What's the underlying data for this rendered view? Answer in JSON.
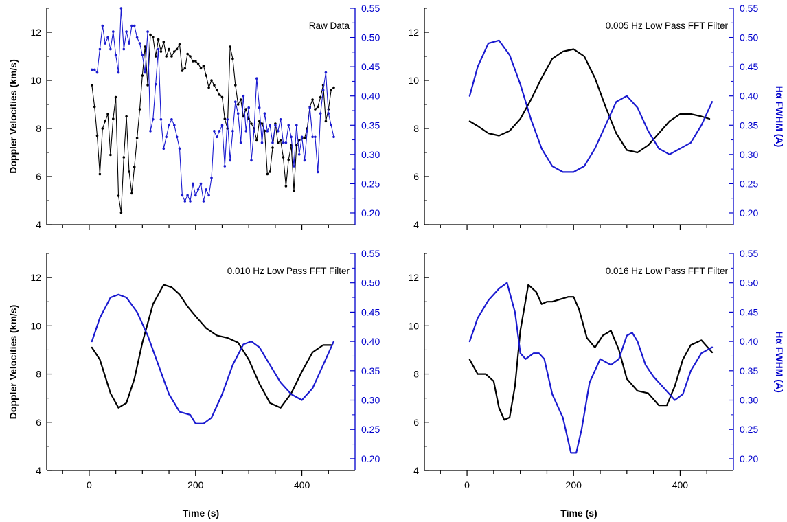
{
  "colors": {
    "velocity": "#000000",
    "fwhm": "#1a1ad0",
    "axis_right": "#0000cc"
  },
  "chart_data": [
    {
      "type": "line",
      "title": "Raw Data",
      "xlabel": "",
      "ylabel": "Doppler Velocities (km/s)",
      "ylabel_right": "",
      "xlim": [
        -80,
        500
      ],
      "ylim": [
        4,
        13
      ],
      "ylim_right": [
        0.18,
        0.55
      ],
      "xticks": [
        "0",
        "200",
        "400"
      ],
      "yticks": [
        "4",
        "6",
        "8",
        "10",
        "12"
      ],
      "yticks_right": [
        "0.20",
        "0.25",
        "0.30",
        "0.35",
        "0.40",
        "0.45",
        "0.50",
        "0.55"
      ],
      "markers": true,
      "series": [
        {
          "axis": "left",
          "x": [
            5,
            10,
            15,
            20,
            25,
            30,
            35,
            40,
            45,
            50,
            55,
            60,
            65,
            70,
            75,
            80,
            85,
            90,
            95,
            100,
            105,
            110,
            115,
            120,
            125,
            130,
            135,
            140,
            145,
            150,
            155,
            160,
            165,
            170,
            175,
            180,
            185,
            190,
            195,
            200,
            205,
            210,
            215,
            220,
            225,
            230,
            235,
            240,
            245,
            250,
            255,
            260,
            265,
            270,
            275,
            280,
            285,
            290,
            295,
            300,
            305,
            310,
            315,
            320,
            325,
            330,
            335,
            340,
            345,
            350,
            355,
            360,
            365,
            370,
            375,
            380,
            385,
            390,
            395,
            400,
            405,
            410,
            415,
            420,
            425,
            430,
            435,
            440,
            445,
            450,
            455,
            460
          ],
          "y": [
            9.8,
            8.9,
            7.7,
            6.1,
            8.0,
            8.3,
            8.6,
            6.9,
            8.4,
            9.3,
            5.2,
            4.5,
            6.8,
            8.5,
            6.2,
            5.3,
            6.4,
            7.6,
            8.8,
            10.2,
            11.4,
            9.8,
            11.9,
            11.8,
            11.0,
            11.7,
            11.2,
            11.6,
            11.0,
            11.3,
            11.0,
            11.2,
            11.3,
            11.5,
            10.4,
            10.5,
            11.1,
            11.0,
            10.8,
            10.8,
            10.7,
            10.5,
            10.6,
            10.2,
            9.7,
            10.0,
            9.8,
            9.6,
            9.4,
            9.3,
            8.4,
            8.0,
            11.4,
            10.9,
            9.8,
            9.0,
            9.2,
            8.5,
            8.8,
            8.4,
            8.2,
            8.0,
            7.5,
            8.3,
            8.2,
            7.9,
            6.1,
            6.2,
            7.2,
            8.2,
            7.4,
            7.5,
            6.8,
            5.6,
            6.7,
            7.3,
            5.4,
            7.3,
            7.5,
            7.6,
            7.6,
            8.0,
            8.9,
            9.2,
            8.8,
            8.9,
            9.3,
            9.8,
            8.3,
            8.8,
            9.6,
            9.7
          ]
        },
        {
          "axis": "right",
          "x": [
            5,
            10,
            15,
            20,
            25,
            30,
            35,
            40,
            45,
            50,
            55,
            60,
            65,
            70,
            75,
            80,
            85,
            90,
            95,
            100,
            105,
            110,
            115,
            120,
            125,
            130,
            135,
            140,
            145,
            150,
            155,
            160,
            165,
            170,
            175,
            180,
            185,
            190,
            195,
            200,
            205,
            210,
            215,
            220,
            225,
            230,
            235,
            240,
            245,
            250,
            255,
            260,
            265,
            270,
            275,
            280,
            285,
            290,
            295,
            300,
            305,
            310,
            315,
            320,
            325,
            330,
            335,
            340,
            345,
            350,
            355,
            360,
            365,
            370,
            375,
            380,
            385,
            390,
            395,
            400,
            405,
            410,
            415,
            420,
            425,
            430,
            435,
            440,
            445,
            450,
            455,
            460
          ],
          "y": [
            0.445,
            0.445,
            0.44,
            0.48,
            0.52,
            0.49,
            0.5,
            0.48,
            0.51,
            0.47,
            0.44,
            0.55,
            0.48,
            0.51,
            0.49,
            0.52,
            0.52,
            0.5,
            0.49,
            0.47,
            0.44,
            0.51,
            0.34,
            0.36,
            0.42,
            0.48,
            0.36,
            0.31,
            0.33,
            0.35,
            0.36,
            0.35,
            0.33,
            0.31,
            0.23,
            0.22,
            0.23,
            0.22,
            0.25,
            0.23,
            0.24,
            0.25,
            0.22,
            0.24,
            0.23,
            0.26,
            0.34,
            0.33,
            0.34,
            0.35,
            0.28,
            0.36,
            0.29,
            0.34,
            0.39,
            0.37,
            0.32,
            0.4,
            0.34,
            0.38,
            0.29,
            0.34,
            0.43,
            0.38,
            0.32,
            0.37,
            0.34,
            0.35,
            0.32,
            0.35,
            0.34,
            0.36,
            0.32,
            0.32,
            0.35,
            0.33,
            0.28,
            0.35,
            0.3,
            0.33,
            0.29,
            0.34,
            0.38,
            0.33,
            0.33,
            0.27,
            0.37,
            0.41,
            0.44,
            0.37,
            0.35,
            0.33
          ]
        }
      ]
    },
    {
      "type": "line",
      "title": "0.005 Hz Low Pass FFT Filter",
      "xlabel": "",
      "ylabel": "",
      "ylabel_right": "Hα FWHM (A)",
      "xlim": [
        -80,
        500
      ],
      "ylim": [
        4,
        13
      ],
      "ylim_right": [
        0.18,
        0.55
      ],
      "xticks": [
        "0",
        "200",
        "400"
      ],
      "yticks": [
        "4",
        "6",
        "8",
        "10",
        "12"
      ],
      "yticks_right": [
        "0.20",
        "0.25",
        "0.30",
        "0.35",
        "0.40",
        "0.45",
        "0.50",
        "0.55"
      ],
      "markers": false,
      "series": [
        {
          "axis": "left",
          "x": [
            5,
            20,
            40,
            60,
            80,
            100,
            120,
            140,
            160,
            180,
            200,
            220,
            240,
            260,
            280,
            300,
            320,
            340,
            360,
            380,
            400,
            420,
            440,
            455
          ],
          "y": [
            8.3,
            8.1,
            7.8,
            7.7,
            7.9,
            8.4,
            9.2,
            10.1,
            10.9,
            11.2,
            11.3,
            11.0,
            10.1,
            8.9,
            7.8,
            7.1,
            7.0,
            7.3,
            7.8,
            8.3,
            8.6,
            8.6,
            8.5,
            8.4
          ]
        },
        {
          "axis": "right",
          "x": [
            5,
            20,
            40,
            60,
            80,
            100,
            120,
            140,
            160,
            180,
            200,
            220,
            240,
            260,
            280,
            300,
            320,
            340,
            360,
            380,
            400,
            420,
            440,
            460
          ],
          "y": [
            0.4,
            0.45,
            0.49,
            0.495,
            0.47,
            0.42,
            0.36,
            0.31,
            0.28,
            0.27,
            0.27,
            0.28,
            0.31,
            0.35,
            0.39,
            0.4,
            0.38,
            0.34,
            0.31,
            0.3,
            0.31,
            0.32,
            0.35,
            0.39
          ]
        }
      ]
    },
    {
      "type": "line",
      "title": "0.010 Hz Low Pass FFT Filter",
      "xlabel": "Time (s)",
      "ylabel": "Doppler Velocities (km/s)",
      "ylabel_right": "",
      "xlim": [
        -80,
        500
      ],
      "ylim": [
        4,
        13
      ],
      "ylim_right": [
        0.18,
        0.55
      ],
      "xticks": [
        "0",
        "200",
        "400"
      ],
      "yticks": [
        "4",
        "6",
        "8",
        "10",
        "12"
      ],
      "yticks_right": [
        "0.20",
        "0.25",
        "0.30",
        "0.35",
        "0.40",
        "0.45",
        "0.50",
        "0.55"
      ],
      "markers": false,
      "series": [
        {
          "axis": "left",
          "x": [
            5,
            20,
            40,
            55,
            70,
            85,
            100,
            120,
            140,
            155,
            170,
            185,
            200,
            220,
            240,
            260,
            280,
            300,
            320,
            340,
            360,
            380,
            400,
            420,
            440,
            455
          ],
          "y": [
            9.1,
            8.6,
            7.2,
            6.6,
            6.8,
            7.8,
            9.3,
            10.9,
            11.7,
            11.6,
            11.3,
            10.8,
            10.4,
            9.9,
            9.6,
            9.5,
            9.3,
            8.6,
            7.6,
            6.8,
            6.6,
            7.2,
            8.1,
            8.9,
            9.2,
            9.2
          ]
        },
        {
          "axis": "right",
          "x": [
            5,
            20,
            40,
            55,
            70,
            90,
            110,
            130,
            150,
            170,
            190,
            200,
            215,
            230,
            250,
            270,
            290,
            305,
            320,
            340,
            360,
            380,
            400,
            420,
            440,
            460
          ],
          "y": [
            0.4,
            0.44,
            0.475,
            0.48,
            0.475,
            0.45,
            0.41,
            0.36,
            0.31,
            0.28,
            0.275,
            0.26,
            0.26,
            0.27,
            0.31,
            0.36,
            0.395,
            0.4,
            0.39,
            0.36,
            0.33,
            0.31,
            0.3,
            0.32,
            0.36,
            0.4
          ]
        }
      ]
    },
    {
      "type": "line",
      "title": "0.016 Hz Low Pass FFT Filter",
      "xlabel": "Time (s)",
      "ylabel": "",
      "ylabel_right": "Hα FWHM (A)",
      "xlim": [
        -80,
        500
      ],
      "ylim": [
        4,
        13
      ],
      "ylim_right": [
        0.18,
        0.55
      ],
      "xticks": [
        "0",
        "200",
        "400"
      ],
      "yticks": [
        "4",
        "6",
        "8",
        "10",
        "12"
      ],
      "yticks_right": [
        "0.20",
        "0.25",
        "0.30",
        "0.35",
        "0.40",
        "0.45",
        "0.50",
        "0.55"
      ],
      "markers": false,
      "series": [
        {
          "axis": "left",
          "x": [
            5,
            20,
            35,
            50,
            60,
            70,
            80,
            90,
            100,
            115,
            130,
            140,
            150,
            160,
            175,
            190,
            200,
            210,
            225,
            240,
            255,
            270,
            285,
            300,
            320,
            340,
            360,
            375,
            390,
            405,
            420,
            440,
            460
          ],
          "y": [
            8.6,
            8.0,
            8.0,
            7.7,
            6.6,
            6.1,
            6.2,
            7.5,
            9.8,
            11.7,
            11.4,
            10.9,
            11.0,
            11.0,
            11.1,
            11.2,
            11.2,
            10.7,
            9.5,
            9.1,
            9.6,
            9.8,
            9.0,
            7.8,
            7.3,
            7.2,
            6.7,
            6.7,
            7.5,
            8.6,
            9.2,
            9.4,
            8.9
          ]
        },
        {
          "axis": "right",
          "x": [
            5,
            20,
            40,
            60,
            75,
            90,
            100,
            110,
            125,
            135,
            145,
            160,
            180,
            195,
            205,
            215,
            230,
            250,
            270,
            285,
            300,
            310,
            320,
            335,
            350,
            370,
            390,
            405,
            420,
            440,
            460
          ],
          "y": [
            0.4,
            0.44,
            0.47,
            0.49,
            0.5,
            0.45,
            0.38,
            0.37,
            0.38,
            0.38,
            0.37,
            0.31,
            0.27,
            0.21,
            0.21,
            0.25,
            0.33,
            0.37,
            0.36,
            0.37,
            0.41,
            0.415,
            0.4,
            0.36,
            0.34,
            0.32,
            0.3,
            0.31,
            0.35,
            0.38,
            0.39
          ]
        }
      ]
    }
  ]
}
